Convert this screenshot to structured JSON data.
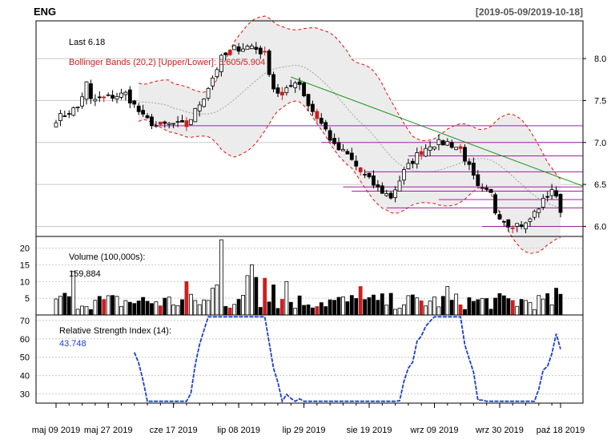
{
  "header": {
    "symbol": "ENG",
    "range": "[2019-05-09/2019-10-18]"
  },
  "colors": {
    "up": "#ffffff",
    "down": "#000000",
    "outline": "#000000",
    "highlight": "#cc1f1f",
    "band_line": "#e01010",
    "band_fill": "#ececec",
    "ma_line": "#a0a0a0",
    "trend_line": "#109010",
    "hline": "#a020a0",
    "rsi_line": "#1a3fd0",
    "rsi_label": "#1a3fd0",
    "grid": "#c8c8c8"
  },
  "chart_data": [
    {
      "type": "candlestick",
      "panel": "price",
      "last_label": "Last 6.18",
      "indicator_label": "Bollinger Bands (20,2) [Upper/Lower]: 6.605/5.904",
      "y_ticks": [
        "8.0",
        "7.5",
        "7.0",
        "6.5",
        "6.0"
      ],
      "ylim": [
        5.88,
        8.45
      ],
      "x_ticks": [
        "maj 09 2019",
        "maj 27 2019",
        "cze 17 2019",
        "lip 08 2019",
        "lip 29 2019",
        "sie 19 2019",
        "wrz 09 2019",
        "wrz 30 2019",
        "paź 18 2019"
      ],
      "x_tick_index": [
        0,
        12,
        27,
        42,
        57,
        72,
        87,
        102,
        116
      ],
      "bars": 117,
      "trend_line": {
        "from": [
          54,
          7.78
        ],
        "to": [
          116,
          6.48
        ]
      },
      "levels": [
        {
          "y": 7.2,
          "from": 23
        },
        {
          "y": 7.0,
          "from": 61
        },
        {
          "y": 6.84,
          "from": 81
        },
        {
          "y": 6.65,
          "from": 71
        },
        {
          "y": 6.47,
          "from": 66
        },
        {
          "y": 6.42,
          "from": 68
        },
        {
          "y": 6.32,
          "from": 88
        },
        {
          "y": 6.22,
          "from": 76
        },
        {
          "y": 6.0,
          "from": 98
        }
      ]
    },
    {
      "type": "bar",
      "panel": "volume",
      "label": "Volume (100,000s):",
      "value_label": "159,884",
      "y_ticks": [
        "20",
        "15",
        "10",
        "5"
      ],
      "ylim": [
        0,
        23.5
      ]
    },
    {
      "type": "line",
      "panel": "rsi",
      "label": "Relative Strength Index (14):",
      "value_label": "43.748",
      "y_ticks": [
        "70",
        "60",
        "50",
        "40",
        "30"
      ],
      "ylim": [
        25,
        73
      ]
    }
  ]
}
